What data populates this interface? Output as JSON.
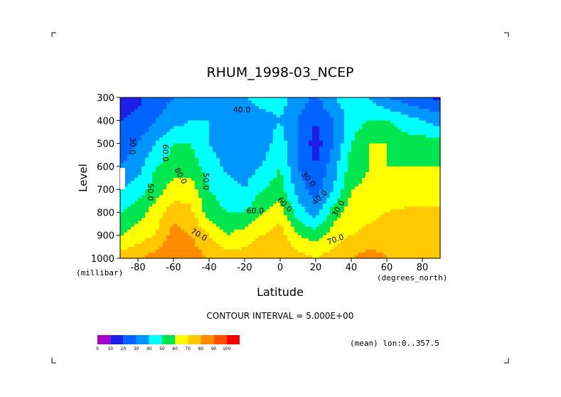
{
  "chart_data": {
    "type": "contour",
    "title": "RHUM_1998-03_NCEP",
    "xlabel": "Latitude",
    "ylabel": "Level",
    "x_units": "(degrees_north)",
    "y_units": "(millibar)",
    "xlim": [
      -90,
      90
    ],
    "ylim": [
      1000,
      300
    ],
    "x_ticks": [
      -80,
      -60,
      -40,
      -20,
      0,
      20,
      40,
      60,
      80
    ],
    "y_ticks": [
      300,
      400,
      500,
      600,
      700,
      800,
      900,
      1000
    ],
    "contour_interval_label": "CONTOUR INTERVAL = 5.000E+00",
    "mean_label": "(mean) lon:0..357.5",
    "colorbar": {
      "levels": [
        0,
        10,
        20,
        30,
        40,
        50,
        60,
        70,
        80,
        90,
        100
      ],
      "colors": [
        "#a000c8",
        "#1e1ee6",
        "#0064ff",
        "#0096ff",
        "#00ffff",
        "#00e650",
        "#ffff00",
        "#ffc800",
        "#ff8c00",
        "#ff5000",
        "#ff0000"
      ]
    },
    "levels": [
      300,
      400,
      500,
      600,
      700,
      800,
      900,
      1000
    ],
    "latitudes": [
      -90,
      -80,
      -70,
      -60,
      -50,
      -40,
      -30,
      -20,
      -10,
      0,
      10,
      20,
      30,
      40,
      50,
      60,
      70,
      80,
      90
    ],
    "values": [
      [
        15,
        18,
        25,
        30,
        35,
        35,
        40,
        40,
        45,
        45,
        35,
        28,
        40,
        45,
        40,
        30,
        25,
        20,
        18
      ],
      [
        20,
        22,
        30,
        35,
        40,
        40,
        35,
        30,
        35,
        40,
        30,
        20,
        30,
        45,
        50,
        50,
        45,
        40,
        35
      ],
      [
        25,
        30,
        40,
        50,
        50,
        40,
        35,
        30,
        35,
        45,
        30,
        15,
        30,
        50,
        60,
        60,
        55,
        55,
        55
      ],
      [
        30,
        35,
        50,
        55,
        55,
        45,
        38,
        35,
        40,
        50,
        30,
        20,
        35,
        55,
        60,
        60,
        60,
        60,
        60
      ],
      [
        40,
        45,
        55,
        65,
        65,
        50,
        45,
        40,
        50,
        55,
        35,
        25,
        40,
        60,
        62,
        62,
        62,
        62,
        62
      ],
      [
        50,
        55,
        65,
        75,
        72,
        55,
        50,
        50,
        60,
        65,
        45,
        35,
        55,
        65,
        68,
        70,
        72,
        72,
        72
      ],
      [
        60,
        65,
        70,
        85,
        80,
        70,
        60,
        65,
        70,
        75,
        60,
        55,
        65,
        70,
        72,
        75,
        75,
        75,
        72
      ],
      [
        75,
        78,
        85,
        90,
        85,
        80,
        75,
        75,
        80,
        80,
        75,
        70,
        75,
        80,
        85,
        80,
        80,
        78,
        75
      ]
    ],
    "contour_labels": [
      "40.0",
      "60.0",
      "70.0",
      "50.0",
      "60.0",
      "80.0",
      "50.0",
      "30.0",
      "40.0",
      "60.0",
      "30.0",
      "70.0",
      "30.0"
    ]
  }
}
